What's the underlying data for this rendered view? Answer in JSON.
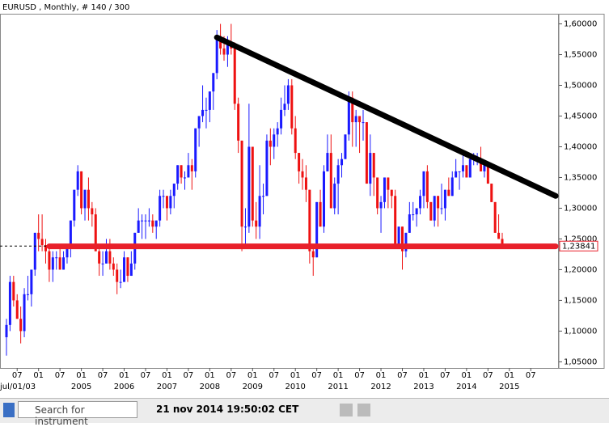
{
  "chart_data": {
    "type": "candlestick",
    "title": "EURUSD , Monthly, # 140 / 300",
    "up_color": "#1a1aff",
    "down_color": "#ee1111",
    "x": [
      "2003-04",
      "2003-05",
      "2003-06",
      "2003-07",
      "2003-08",
      "2003-09",
      "2003-10",
      "2003-11",
      "2003-12",
      "2004-01",
      "2004-02",
      "2004-03",
      "2004-04",
      "2004-05",
      "2004-06",
      "2004-07",
      "2004-08",
      "2004-09",
      "2004-10",
      "2004-11",
      "2004-12",
      "2005-01",
      "2005-02",
      "2005-03",
      "2005-04",
      "2005-05",
      "2005-06",
      "2005-07",
      "2005-08",
      "2005-09",
      "2005-10",
      "2005-11",
      "2005-12",
      "2006-01",
      "2006-02",
      "2006-03",
      "2006-04",
      "2006-05",
      "2006-06",
      "2006-07",
      "2006-08",
      "2006-09",
      "2006-10",
      "2006-11",
      "2006-12",
      "2007-01",
      "2007-02",
      "2007-03",
      "2007-04",
      "2007-05",
      "2007-06",
      "2007-07",
      "2007-08",
      "2007-09",
      "2007-10",
      "2007-11",
      "2007-12",
      "2008-01",
      "2008-02",
      "2008-03",
      "2008-04",
      "2008-05",
      "2008-06",
      "2008-07",
      "2008-08",
      "2008-09",
      "2008-10",
      "2008-11",
      "2008-12",
      "2009-01",
      "2009-02",
      "2009-03",
      "2009-04",
      "2009-05",
      "2009-06",
      "2009-07",
      "2009-08",
      "2009-09",
      "2009-10",
      "2009-11",
      "2009-12",
      "2010-01",
      "2010-02",
      "2010-03",
      "2010-04",
      "2010-05",
      "2010-06",
      "2010-07",
      "2010-08",
      "2010-09",
      "2010-10",
      "2010-11",
      "2010-12",
      "2011-01",
      "2011-02",
      "2011-03",
      "2011-04",
      "2011-05",
      "2011-06",
      "2011-07",
      "2011-08",
      "2011-09",
      "2011-10",
      "2011-11",
      "2011-12",
      "2012-01",
      "2012-02",
      "2012-03",
      "2012-04",
      "2012-05",
      "2012-06",
      "2012-07",
      "2012-08",
      "2012-09",
      "2012-10",
      "2012-11",
      "2012-12",
      "2013-01",
      "2013-02",
      "2013-03",
      "2013-04",
      "2013-05",
      "2013-06",
      "2013-07",
      "2013-08",
      "2013-09",
      "2013-10",
      "2013-11",
      "2013-12",
      "2014-01",
      "2014-02",
      "2014-03",
      "2014-04",
      "2014-05",
      "2014-06",
      "2014-07",
      "2014-08",
      "2014-09",
      "2014-10",
      "2014-11"
    ],
    "open": [
      1.09,
      1.11,
      1.18,
      1.15,
      1.12,
      1.1,
      1.16,
      1.16,
      1.2,
      1.26,
      1.25,
      1.24,
      1.23,
      1.2,
      1.22,
      1.22,
      1.2,
      1.22,
      1.24,
      1.28,
      1.33,
      1.36,
      1.3,
      1.33,
      1.3,
      1.29,
      1.23,
      1.21,
      1.21,
      1.23,
      1.21,
      1.2,
      1.18,
      1.18,
      1.22,
      1.19,
      1.21,
      1.26,
      1.28,
      1.28,
      1.28,
      1.28,
      1.27,
      1.28,
      1.32,
      1.32,
      1.3,
      1.32,
      1.34,
      1.37,
      1.35,
      1.35,
      1.37,
      1.36,
      1.43,
      1.45,
      1.46,
      1.46,
      1.49,
      1.52,
      1.58,
      1.56,
      1.55,
      1.57,
      1.56,
      1.47,
      1.41,
      1.27,
      1.27,
      1.4,
      1.28,
      1.27,
      1.32,
      1.32,
      1.41,
      1.4,
      1.42,
      1.43,
      1.46,
      1.47,
      1.5,
      1.43,
      1.39,
      1.36,
      1.35,
      1.33,
      1.23,
      1.22,
      1.31,
      1.27,
      1.36,
      1.39,
      1.3,
      1.34,
      1.37,
      1.38,
      1.42,
      1.48,
      1.44,
      1.45,
      1.44,
      1.44,
      1.34,
      1.39,
      1.35,
      1.3,
      1.31,
      1.35,
      1.33,
      1.32,
      1.24,
      1.27,
      1.23,
      1.26,
      1.29,
      1.29,
      1.3,
      1.32,
      1.36,
      1.31,
      1.28,
      1.32,
      1.3,
      1.3,
      1.33,
      1.32,
      1.35,
      1.36,
      1.36,
      1.37,
      1.35,
      1.38,
      1.38,
      1.38,
      1.36,
      1.37,
      1.34,
      1.31,
      1.26,
      1.25
    ],
    "high": [
      1.12,
      1.19,
      1.19,
      1.16,
      1.14,
      1.17,
      1.19,
      1.2,
      1.26,
      1.29,
      1.29,
      1.25,
      1.24,
      1.23,
      1.23,
      1.24,
      1.23,
      1.24,
      1.28,
      1.33,
      1.37,
      1.36,
      1.33,
      1.35,
      1.31,
      1.3,
      1.24,
      1.23,
      1.25,
      1.25,
      1.22,
      1.21,
      1.2,
      1.23,
      1.22,
      1.23,
      1.26,
      1.3,
      1.29,
      1.29,
      1.3,
      1.29,
      1.28,
      1.33,
      1.33,
      1.32,
      1.33,
      1.34,
      1.37,
      1.37,
      1.36,
      1.39,
      1.38,
      1.43,
      1.45,
      1.5,
      1.48,
      1.49,
      1.52,
      1.59,
      1.6,
      1.58,
      1.58,
      1.6,
      1.57,
      1.48,
      1.41,
      1.3,
      1.47,
      1.4,
      1.31,
      1.37,
      1.34,
      1.42,
      1.43,
      1.43,
      1.44,
      1.48,
      1.5,
      1.51,
      1.51,
      1.45,
      1.39,
      1.38,
      1.37,
      1.33,
      1.24,
      1.31,
      1.33,
      1.37,
      1.42,
      1.42,
      1.35,
      1.38,
      1.39,
      1.42,
      1.49,
      1.49,
      1.46,
      1.45,
      1.46,
      1.44,
      1.42,
      1.39,
      1.35,
      1.32,
      1.35,
      1.35,
      1.33,
      1.33,
      1.27,
      1.27,
      1.26,
      1.31,
      1.31,
      1.3,
      1.33,
      1.36,
      1.37,
      1.31,
      1.32,
      1.32,
      1.34,
      1.33,
      1.35,
      1.36,
      1.38,
      1.36,
      1.39,
      1.37,
      1.38,
      1.39,
      1.39,
      1.4,
      1.37,
      1.37,
      1.34,
      1.31,
      1.29,
      1.26
    ],
    "low": [
      1.06,
      1.1,
      1.14,
      1.12,
      1.08,
      1.09,
      1.15,
      1.14,
      1.19,
      1.23,
      1.23,
      1.21,
      1.18,
      1.18,
      1.2,
      1.2,
      1.2,
      1.21,
      1.22,
      1.27,
      1.32,
      1.29,
      1.28,
      1.28,
      1.27,
      1.23,
      1.19,
      1.19,
      1.21,
      1.2,
      1.19,
      1.16,
      1.17,
      1.18,
      1.18,
      1.19,
      1.2,
      1.26,
      1.25,
      1.25,
      1.27,
      1.26,
      1.25,
      1.27,
      1.3,
      1.28,
      1.29,
      1.3,
      1.33,
      1.34,
      1.33,
      1.35,
      1.33,
      1.35,
      1.4,
      1.44,
      1.43,
      1.44,
      1.46,
      1.51,
      1.55,
      1.54,
      1.53,
      1.55,
      1.46,
      1.39,
      1.23,
      1.24,
      1.26,
      1.27,
      1.25,
      1.25,
      1.29,
      1.32,
      1.37,
      1.38,
      1.4,
      1.42,
      1.45,
      1.46,
      1.42,
      1.38,
      1.34,
      1.33,
      1.31,
      1.21,
      1.19,
      1.22,
      1.27,
      1.26,
      1.36,
      1.3,
      1.29,
      1.29,
      1.35,
      1.38,
      1.41,
      1.4,
      1.4,
      1.39,
      1.41,
      1.34,
      1.32,
      1.32,
      1.29,
      1.26,
      1.3,
      1.3,
      1.3,
      1.24,
      1.24,
      1.2,
      1.22,
      1.26,
      1.28,
      1.27,
      1.29,
      1.3,
      1.3,
      1.28,
      1.27,
      1.27,
      1.29,
      1.28,
      1.32,
      1.32,
      1.35,
      1.33,
      1.35,
      1.35,
      1.35,
      1.37,
      1.37,
      1.36,
      1.35,
      1.34,
      1.31,
      1.26,
      1.25,
      1.24
    ],
    "close": [
      1.11,
      1.18,
      1.15,
      1.12,
      1.1,
      1.16,
      1.16,
      1.2,
      1.26,
      1.25,
      1.24,
      1.23,
      1.2,
      1.22,
      1.22,
      1.2,
      1.22,
      1.24,
      1.28,
      1.33,
      1.36,
      1.3,
      1.33,
      1.3,
      1.29,
      1.23,
      1.21,
      1.21,
      1.23,
      1.21,
      1.2,
      1.18,
      1.18,
      1.22,
      1.19,
      1.21,
      1.26,
      1.28,
      1.28,
      1.28,
      1.28,
      1.27,
      1.28,
      1.32,
      1.32,
      1.3,
      1.32,
      1.34,
      1.37,
      1.35,
      1.35,
      1.37,
      1.36,
      1.43,
      1.45,
      1.46,
      1.46,
      1.49,
      1.52,
      1.58,
      1.56,
      1.55,
      1.57,
      1.56,
      1.47,
      1.41,
      1.27,
      1.27,
      1.4,
      1.28,
      1.27,
      1.32,
      1.32,
      1.41,
      1.4,
      1.42,
      1.43,
      1.46,
      1.47,
      1.5,
      1.43,
      1.39,
      1.36,
      1.35,
      1.33,
      1.23,
      1.22,
      1.31,
      1.27,
      1.36,
      1.39,
      1.3,
      1.34,
      1.37,
      1.38,
      1.42,
      1.48,
      1.44,
      1.45,
      1.44,
      1.44,
      1.34,
      1.39,
      1.35,
      1.3,
      1.31,
      1.35,
      1.33,
      1.32,
      1.24,
      1.27,
      1.23,
      1.26,
      1.29,
      1.29,
      1.3,
      1.32,
      1.36,
      1.31,
      1.28,
      1.32,
      1.3,
      1.3,
      1.33,
      1.32,
      1.35,
      1.36,
      1.36,
      1.37,
      1.35,
      1.38,
      1.38,
      1.38,
      1.36,
      1.37,
      1.34,
      1.31,
      1.26,
      1.25,
      1.23841
    ],
    "ylim": [
      1.04,
      1.6165
    ],
    "yticks": [
      {
        "value": 1.05,
        "label": "1,05000"
      },
      {
        "value": 1.1,
        "label": "1,10000"
      },
      {
        "value": 1.15,
        "label": "1,15000"
      },
      {
        "value": 1.2,
        "label": "1,20000"
      },
      {
        "value": 1.25,
        "label": "1,25000"
      },
      {
        "value": 1.3,
        "label": "1,30000"
      },
      {
        "value": 1.35,
        "label": "1,35000"
      },
      {
        "value": 1.4,
        "label": "1,40000"
      },
      {
        "value": 1.45,
        "label": "1,45000"
      },
      {
        "value": 1.5,
        "label": "1,50000"
      },
      {
        "value": 1.55,
        "label": "1,55000"
      },
      {
        "value": 1.6,
        "label": "1,60000"
      }
    ],
    "xticks": [
      {
        "value": "2003-07",
        "label": "07"
      },
      {
        "value": "2004-01",
        "label": "01"
      },
      {
        "value": "2004-07",
        "label": "07"
      },
      {
        "value": "2005-01",
        "label": "01"
      },
      {
        "value": "2005-07",
        "label": "07"
      },
      {
        "value": "2006-01",
        "label": "01"
      },
      {
        "value": "2006-07",
        "label": "07"
      },
      {
        "value": "2007-01",
        "label": "01"
      },
      {
        "value": "2007-07",
        "label": "07"
      },
      {
        "value": "2008-01",
        "label": "01"
      },
      {
        "value": "2008-07",
        "label": "07"
      },
      {
        "value": "2009-01",
        "label": "01"
      },
      {
        "value": "2009-07",
        "label": "07"
      },
      {
        "value": "2010-01",
        "label": "01"
      },
      {
        "value": "2010-07",
        "label": "07"
      },
      {
        "value": "2011-01",
        "label": "01"
      },
      {
        "value": "2011-07",
        "label": "07"
      },
      {
        "value": "2012-01",
        "label": "01"
      },
      {
        "value": "2012-07",
        "label": "07"
      },
      {
        "value": "2013-01",
        "label": "01"
      },
      {
        "value": "2013-07",
        "label": "07"
      },
      {
        "value": "2014-01",
        "label": "01"
      },
      {
        "value": "2014-07",
        "label": "07"
      },
      {
        "value": "2015-01",
        "label": "01"
      },
      {
        "value": "2015-07",
        "label": "07"
      }
    ],
    "year_labels": [
      {
        "value": "2005-01",
        "label": "2005"
      },
      {
        "value": "2006-01",
        "label": "2006"
      },
      {
        "value": "2007-01",
        "label": "2007"
      },
      {
        "value": "2008-01",
        "label": "2008"
      },
      {
        "value": "2009-01",
        "label": "2009"
      },
      {
        "value": "2010-01",
        "label": "2010"
      },
      {
        "value": "2011-01",
        "label": "2011"
      },
      {
        "value": "2012-01",
        "label": "2012"
      },
      {
        "value": "2013-01",
        "label": "2013"
      },
      {
        "value": "2014-01",
        "label": "2014"
      },
      {
        "value": "2015-01",
        "label": "2015"
      }
    ],
    "last_price": {
      "value": 1.23841,
      "label": "1,23841"
    },
    "lines": [
      {
        "color": "#e8202a",
        "x": [
          "2004-04",
          "2016-02"
        ],
        "y": [
          1.238,
          1.238
        ]
      },
      {
        "color": "#000000",
        "x": [
          "2008-03",
          "2016-02"
        ],
        "y": [
          1.578,
          1.32
        ]
      }
    ],
    "cursor_date": "jul/01/03"
  },
  "toolbar": {
    "search_placeholder": "Search for instrument",
    "timestamp": "21 nov 2014 19:50:02 CET"
  }
}
